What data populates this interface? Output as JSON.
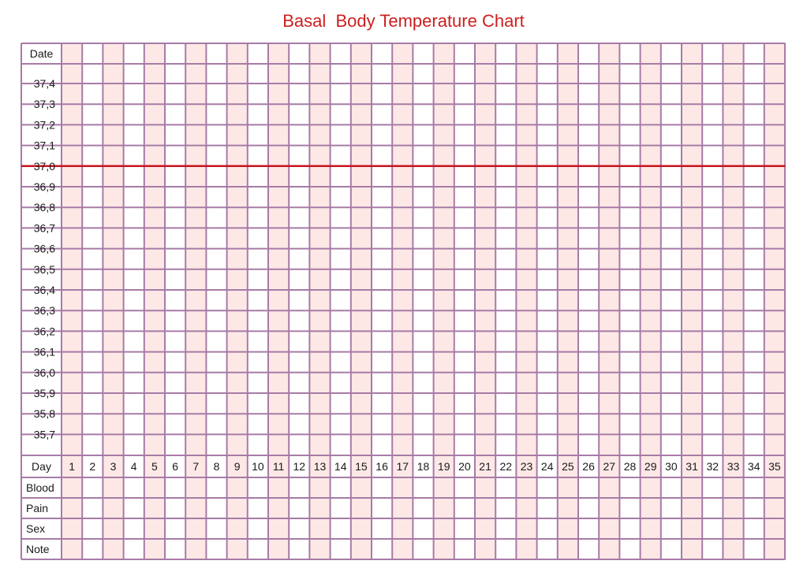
{
  "title": "Basal  Body Temperature Chart",
  "row_labels": {
    "date": "Date",
    "day": "Day",
    "blood": "Blood",
    "pain": "Pain",
    "sex": "Sex",
    "note": "Note"
  },
  "temperatures": [
    "37,4",
    "37,3",
    "37,2",
    "37,1",
    "37,0",
    "36,9",
    "36,8",
    "36,7",
    "36,6",
    "36,5",
    "36,4",
    "36,3",
    "36,2",
    "36,1",
    "36,0",
    "35,9",
    "35,8",
    "35,7"
  ],
  "days": [
    "1",
    "2",
    "3",
    "4",
    "5",
    "6",
    "7",
    "8",
    "9",
    "10",
    "11",
    "12",
    "13",
    "14",
    "15",
    "16",
    "17",
    "18",
    "19",
    "20",
    "21",
    "22",
    "23",
    "24",
    "25",
    "26",
    "27",
    "28",
    "29",
    "30",
    "31",
    "32",
    "33",
    "34",
    "35"
  ],
  "reference_line": "37,0",
  "colors": {
    "title": "#cc1f1f",
    "grid": "#a77ba6",
    "shade": "#fde8e6",
    "reference": "#c8141e"
  }
}
